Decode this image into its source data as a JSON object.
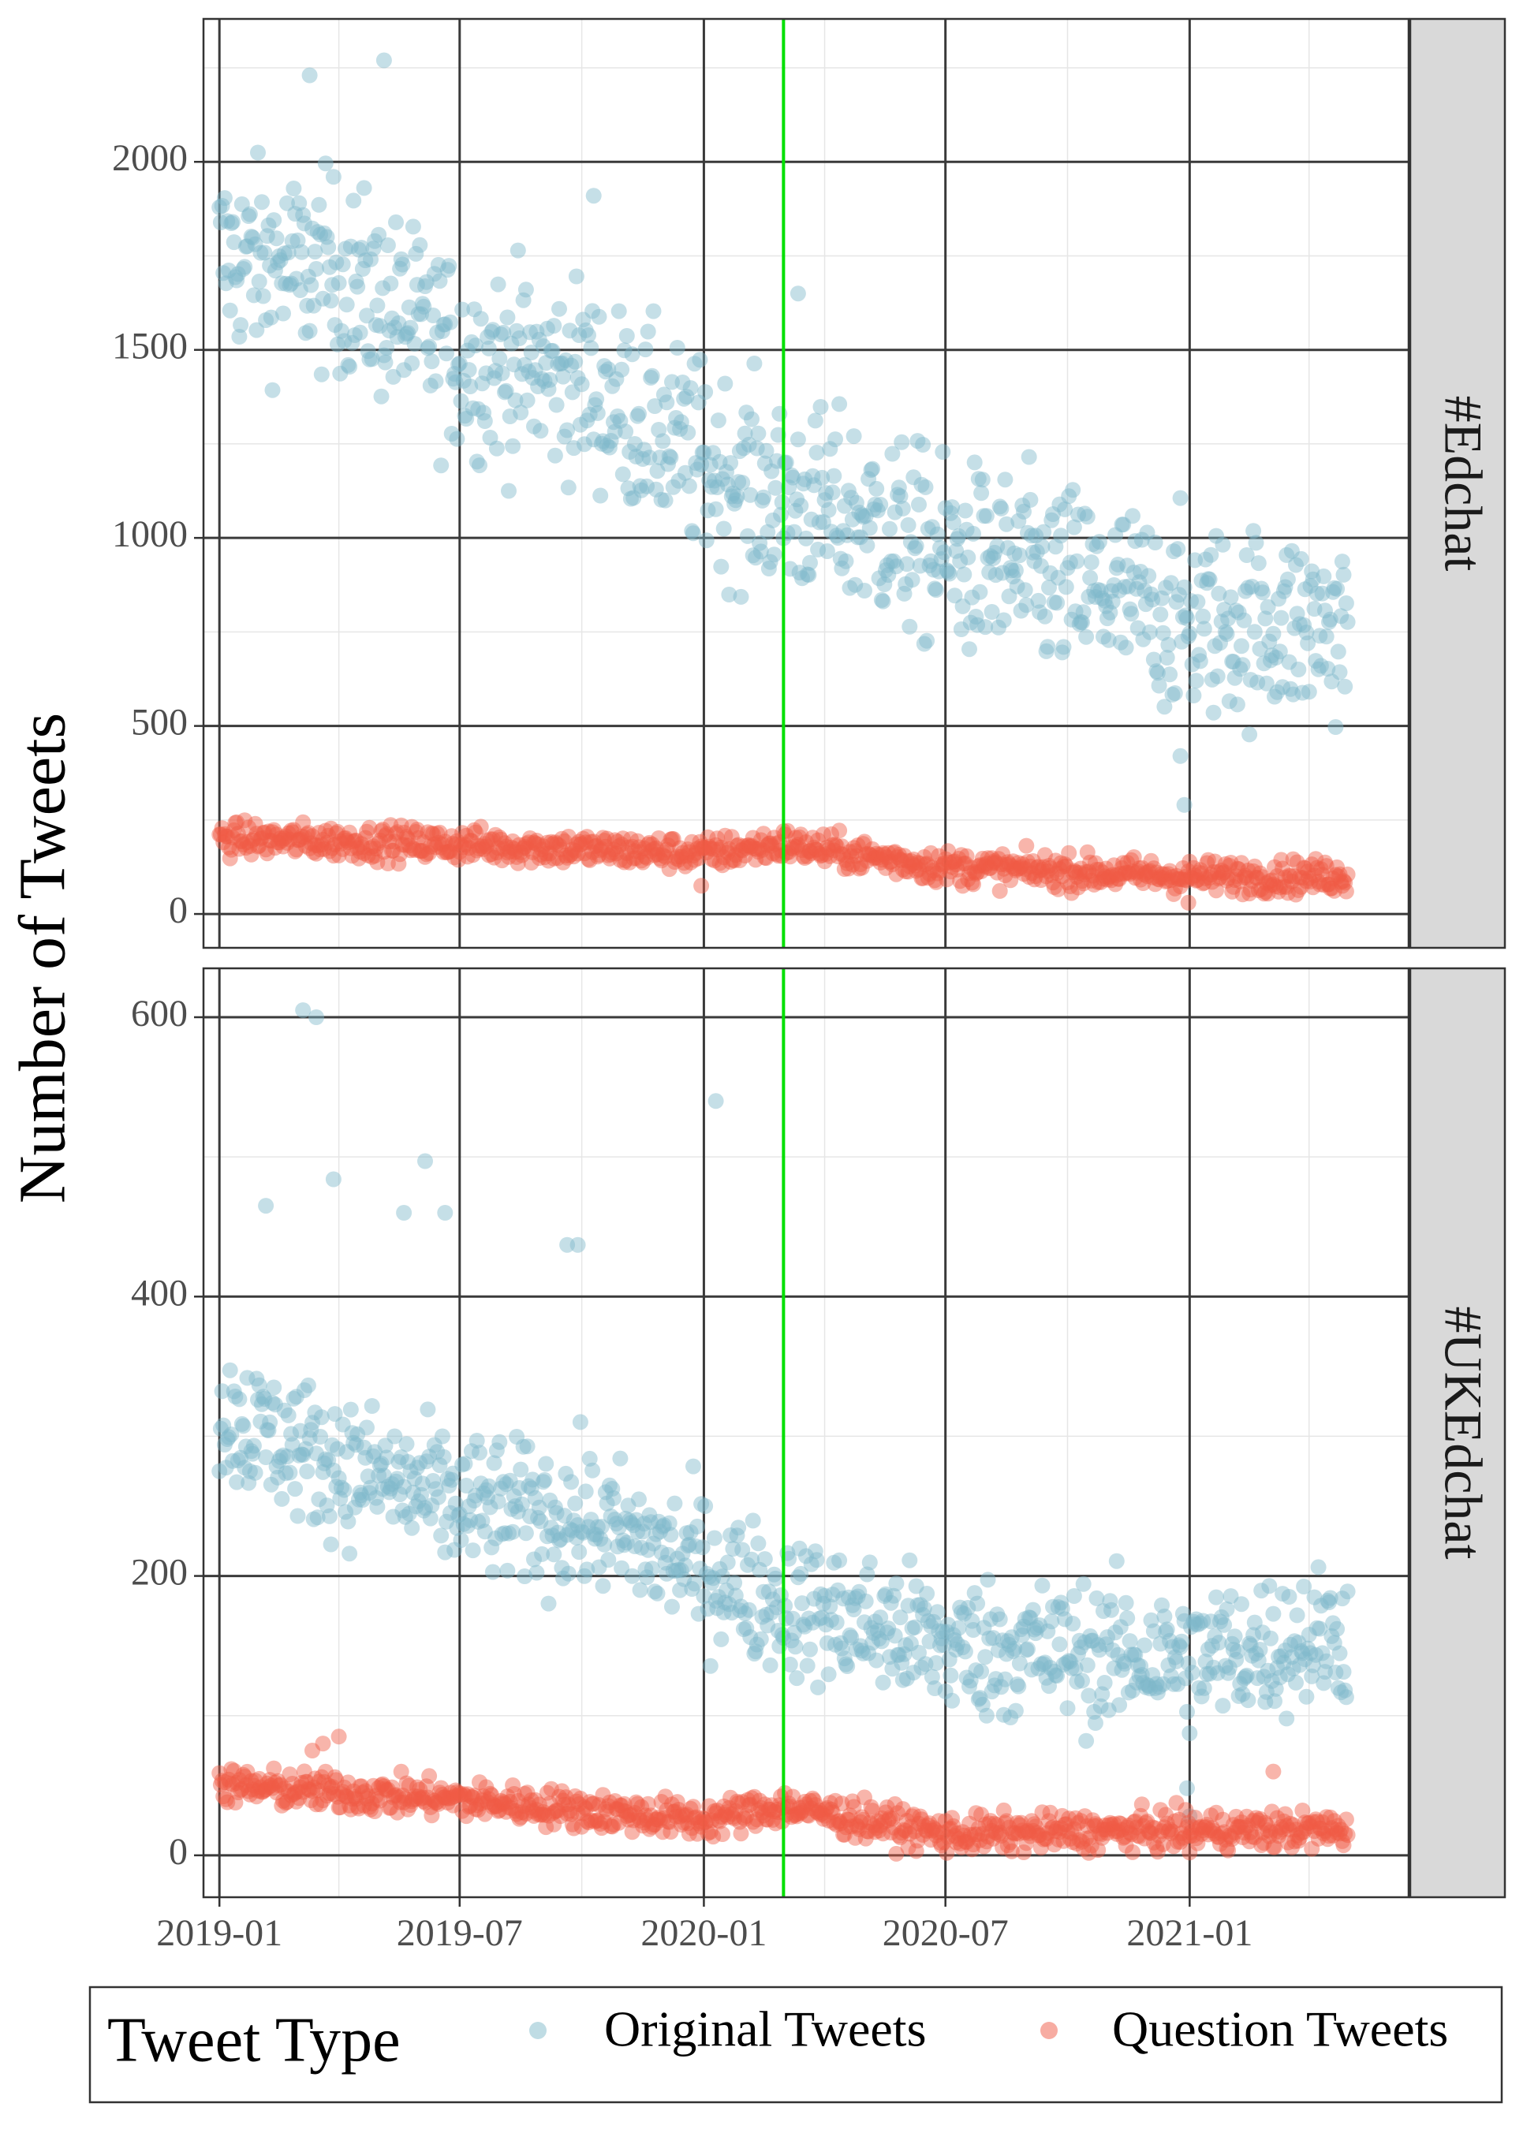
{
  "chart_data": {
    "type": "scatter",
    "ylabel": "Number of Tweets",
    "x_ticks": [
      "2019-01",
      "2019-07",
      "2020-01",
      "2020-07",
      "2021-01"
    ],
    "x_range": [
      "2018-12-20",
      "2021-06-15"
    ],
    "reference_line": {
      "date": "2020-03-01",
      "color": "#00e000"
    },
    "legend": {
      "title": "Tweet Type",
      "position": "bottom",
      "entries": [
        {
          "key": "original",
          "label": "Original Tweets",
          "color": "#7fb9c9"
        },
        {
          "key": "question",
          "label": "Question Tweets",
          "color": "#ef5a45"
        }
      ]
    },
    "colors": {
      "original": "#7fb9c9",
      "question": "#ef5a45",
      "strip": "#d9d9d9",
      "grid_major": "#3a3a3a",
      "grid_minor": "#e6e6e6"
    },
    "panels": [
      {
        "strip": "#Edchat",
        "ylim": [
          -90,
          2380
        ],
        "y_ticks": [
          0,
          500,
          1000,
          1500,
          2000
        ],
        "series": [
          {
            "name": "Original Tweets",
            "trend_x": [
              "2019-01-01",
              "2019-04-01",
              "2019-07-01",
              "2019-10-01",
              "2020-01-01",
              "2020-03-01",
              "2020-05-01",
              "2020-07-01",
              "2020-10-01",
              "2021-01-01",
              "2021-05-01"
            ],
            "trend_y": [
              1750,
              1700,
              1480,
              1420,
              1200,
              1100,
              1050,
              950,
              880,
              780,
              760
            ],
            "spread": 230,
            "outliers": [
              [
                "2019-05-05",
                2270
              ],
              [
                "2019-03-10",
                2230
              ],
              [
                "2020-12-28",
                290
              ],
              [
                "2020-12-25",
                420
              ],
              [
                "2020-03-12",
                1650
              ],
              [
                "2019-10-10",
                1910
              ]
            ]
          },
          {
            "name": "Question Tweets",
            "trend_x": [
              "2019-01-01",
              "2019-07-01",
              "2020-01-01",
              "2020-03-01",
              "2020-07-01",
              "2021-01-01",
              "2021-05-01"
            ],
            "trend_y": [
              200,
              185,
              160,
              185,
              125,
              100,
              100
            ],
            "spread": 40,
            "outliers": [
              [
                "2020-12-31",
                30
              ],
              [
                "2019-12-30",
                75
              ]
            ]
          }
        ]
      },
      {
        "strip": "#UKEdchat",
        "ylim": [
          -30,
          635
        ],
        "y_ticks": [
          0,
          200,
          400,
          600
        ],
        "series": [
          {
            "name": "Original Tweets",
            "trend_x": [
              "2019-01-01",
              "2019-04-01",
              "2019-07-01",
              "2019-10-01",
              "2020-01-01",
              "2020-03-01",
              "2020-07-01",
              "2021-01-01",
              "2021-05-01"
            ],
            "trend_y": [
              315,
              280,
              250,
              240,
              205,
              180,
              150,
              140,
              160
            ],
            "spread": 45,
            "outliers": [
              [
                "2019-03-05",
                605
              ],
              [
                "2019-03-15",
                600
              ],
              [
                "2020-01-10",
                540
              ],
              [
                "2019-06-05",
                497
              ],
              [
                "2019-02-05",
                465
              ],
              [
                "2019-03-28",
                484
              ],
              [
                "2019-09-20",
                437
              ],
              [
                "2019-09-28",
                437
              ],
              [
                "2019-05-20",
                460
              ],
              [
                "2019-06-20",
                460
              ],
              [
                "2021-01-01",
                28
              ],
              [
                "2020-12-30",
                48
              ]
            ]
          },
          {
            "name": "Question Tweets",
            "trend_x": [
              "2019-01-01",
              "2019-07-01",
              "2020-01-01",
              "2020-03-01",
              "2020-07-01",
              "2021-01-01",
              "2021-05-01"
            ],
            "trend_y": [
              50,
              40,
              25,
              35,
              15,
              18,
              18
            ],
            "spread": 12,
            "outliers": [
              [
                "2019-04-01",
                85
              ],
              [
                "2019-03-20",
                80
              ],
              [
                "2019-03-12",
                75
              ],
              [
                "2021-03-05",
                60
              ],
              [
                "2021-01-01",
                2
              ]
            ]
          }
        ]
      }
    ]
  }
}
